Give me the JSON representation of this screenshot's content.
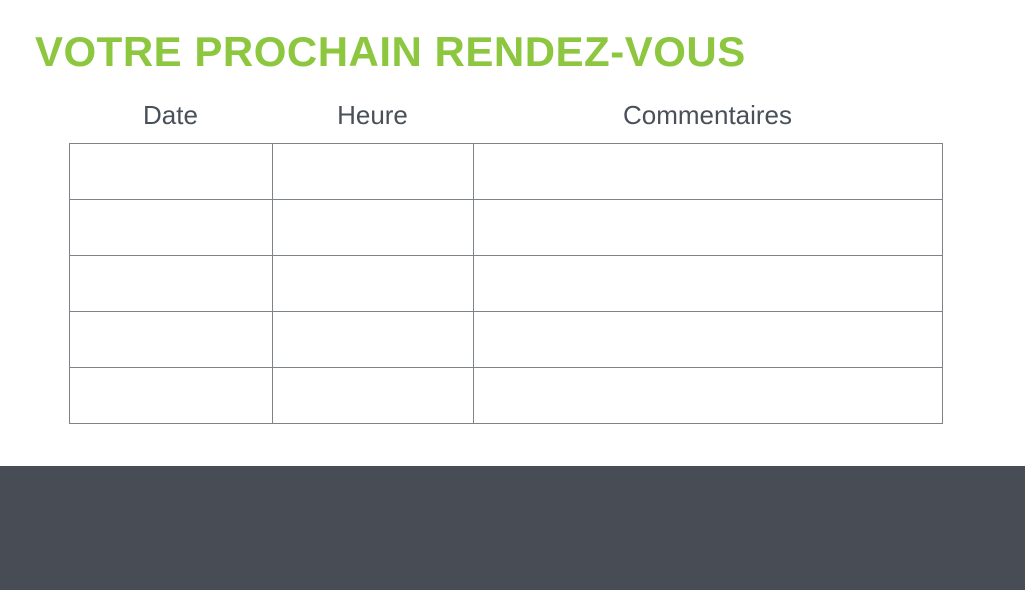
{
  "page": {
    "title": "VOTRE PROCHAIN RENDEZ-VOUS"
  },
  "table": {
    "columns": [
      "Date",
      "Heure",
      "Commentaires"
    ],
    "rows": [
      [
        "",
        "",
        ""
      ],
      [
        "",
        "",
        ""
      ],
      [
        "",
        "",
        ""
      ],
      [
        "",
        "",
        ""
      ],
      [
        "",
        "",
        ""
      ]
    ]
  },
  "colors": {
    "accent_green": "#8DC63F",
    "header_text": "#4A5059",
    "table_border": "#7E838A",
    "footer_background": "#474C55",
    "page_background": "#FFFFFF"
  }
}
